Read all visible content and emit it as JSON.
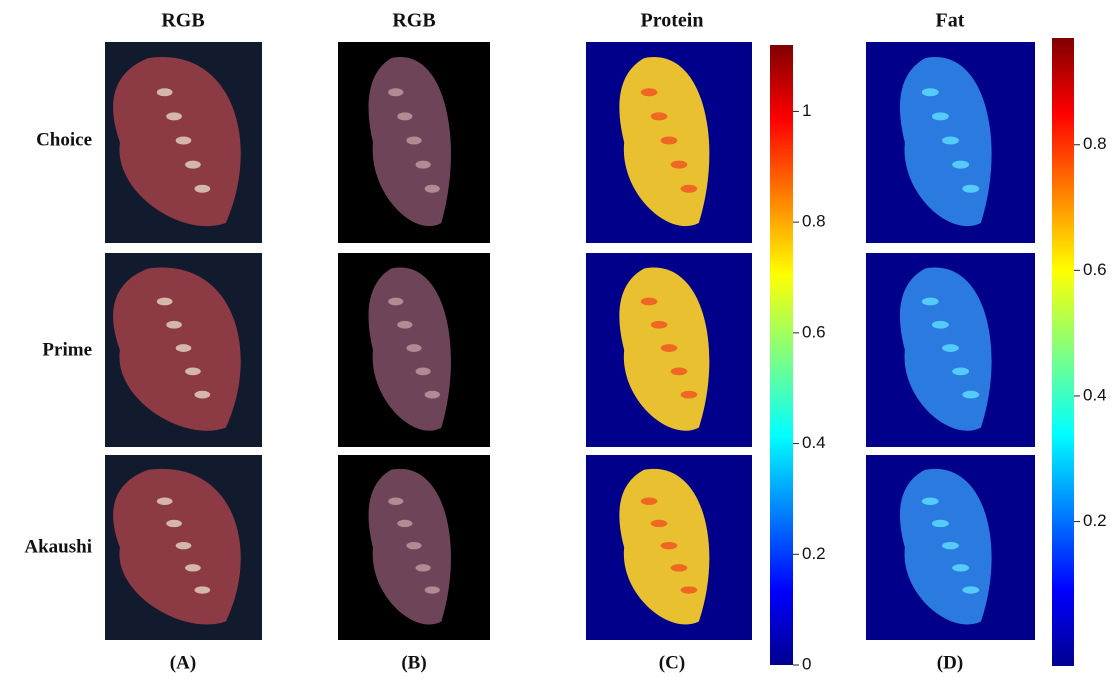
{
  "figure": {
    "column_titles": [
      "RGB",
      "RGB",
      "Protein",
      "Fat"
    ],
    "row_labels": [
      "Choice",
      "Prime",
      "Akaushi"
    ],
    "panel_labels": [
      "(A)",
      "(B)",
      "(C)",
      "(D)"
    ],
    "colorbars": [
      {
        "ylim": [
          0,
          1.12
        ],
        "yticks": [
          0,
          0.2,
          0.4,
          0.6,
          0.8,
          1
        ]
      },
      {
        "ylim": [
          -0.03,
          0.97
        ],
        "yticks": [
          0.2,
          0.4,
          0.6,
          0.8
        ]
      }
    ]
  }
}
